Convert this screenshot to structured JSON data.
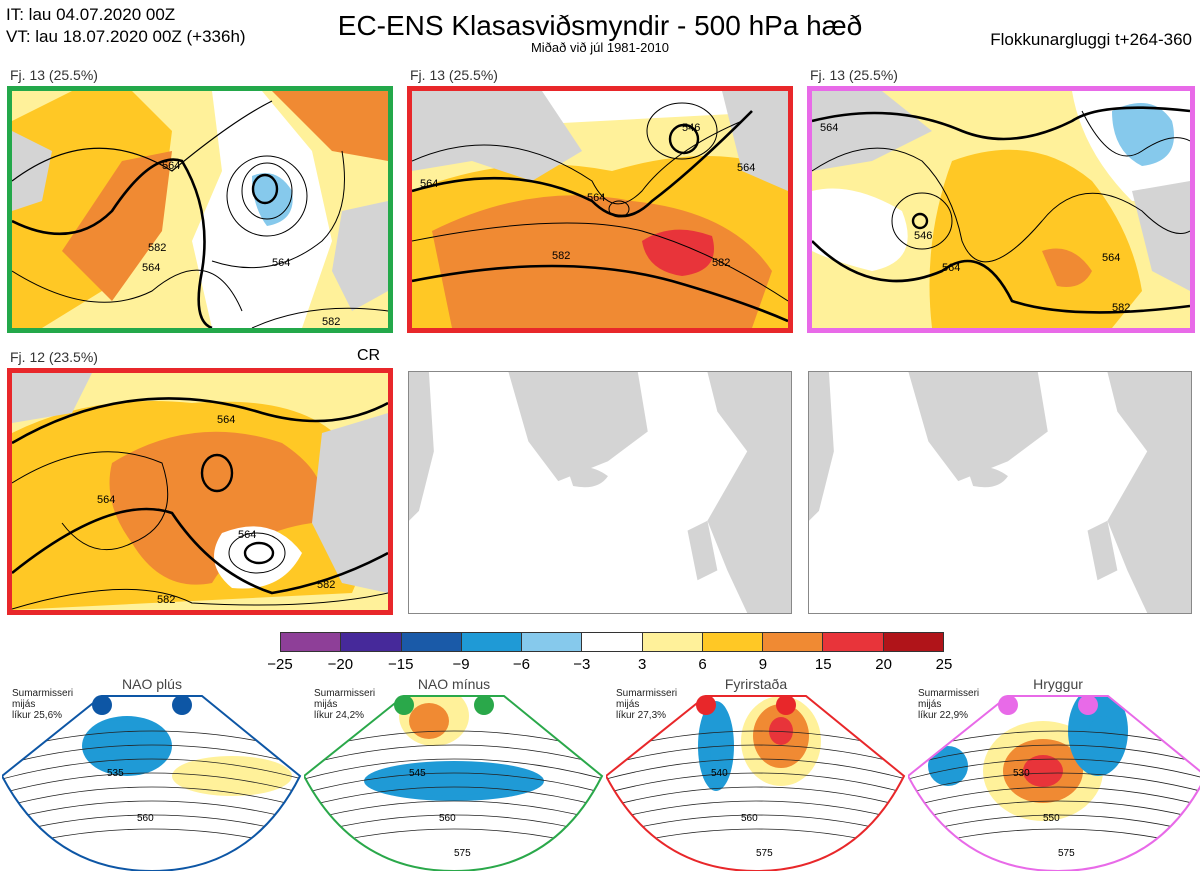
{
  "header": {
    "it": "IT: lau 04.07.2020 00Z",
    "vt": "VT: lau 18.07.2020 00Z  (+336h)",
    "title": "EC-ENS Klasasviðsmyndir - 500 hPa hæð",
    "subtitle": "Miðað við júl 1981-2010",
    "window": "Flokkunargluggi t+264-360"
  },
  "panels": [
    {
      "label": "Fj. 13 (25.5%)",
      "border": "#23a84a",
      "contours": [
        "564",
        "564",
        "582",
        "564",
        "582"
      ]
    },
    {
      "label": "Fj. 13 (25.5%)",
      "border": "#e8272a",
      "contours": [
        "546",
        "564",
        "564",
        "564",
        "582",
        "582"
      ]
    },
    {
      "label": "Fj. 13 (25.5%)",
      "border": "#e86ae8",
      "contours": [
        "564",
        "546",
        "564",
        "564",
        "582"
      ]
    },
    {
      "label": "Fj. 12 (23.5%)",
      "border": "#e8272a",
      "tag": "CR",
      "contours": [
        "564",
        "564",
        "564",
        "582",
        "582"
      ]
    },
    {
      "label": "",
      "border": "none"
    },
    {
      "label": "",
      "border": "none"
    }
  ],
  "colorbar": {
    "colors": [
      "#8e3f98",
      "#46299a",
      "#1a5aa8",
      "#1f9ad6",
      "#86c9ec",
      "#ffffff",
      "#fff19a",
      "#ffc825",
      "#f08a33",
      "#e8343a",
      "#b01419"
    ],
    "ticks": [
      "−25",
      "−20",
      "−15",
      "−9",
      "−6",
      "−3",
      "3",
      "6",
      "9",
      "15",
      "20",
      "25"
    ]
  },
  "regimes": [
    {
      "title": "NAO plús",
      "note": [
        "Sumarmisseri",
        "mijás",
        "líkur 25,6%"
      ],
      "color": "#0d56a5",
      "contours": [
        "535",
        "560"
      ]
    },
    {
      "title": "NAO mínus",
      "note": [
        "Sumarmisseri",
        "mijás",
        "líkur 24,2%"
      ],
      "color": "#2aa84a",
      "contours": [
        "545",
        "560",
        "575"
      ]
    },
    {
      "title": "Fyrirstaða",
      "note": [
        "Sumarmisseri",
        "mijás",
        "líkur 27,3%"
      ],
      "color": "#e8272a",
      "contours": [
        "540",
        "560",
        "575"
      ]
    },
    {
      "title": "Hryggur",
      "note": [
        "Sumarmisseri",
        "mijás",
        "líkur 22,9%"
      ],
      "color": "#e86ae8",
      "contours": [
        "530",
        "550",
        "575"
      ]
    }
  ]
}
